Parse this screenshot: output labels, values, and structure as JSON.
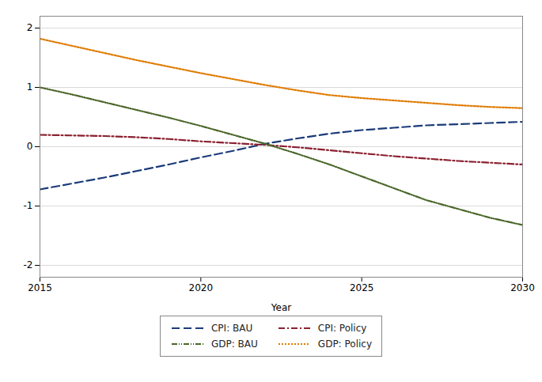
{
  "chart_data": {
    "type": "line",
    "xlabel": "Year",
    "x": [
      2015,
      2016,
      2017,
      2018,
      2019,
      2020,
      2021,
      2022,
      2023,
      2024,
      2025,
      2026,
      2027,
      2028,
      2029,
      2030
    ],
    "series": [
      {
        "name": "CPI: BAU",
        "color": "#1a3a7a",
        "line_style": "dashed",
        "values": [
          -0.72,
          -0.62,
          -0.52,
          -0.41,
          -0.3,
          -0.18,
          -0.07,
          0.05,
          0.14,
          0.22,
          0.28,
          0.32,
          0.36,
          0.38,
          0.4,
          0.42
        ]
      },
      {
        "name": "CPI: Policy",
        "color": "#8b2030",
        "line_style": "dashdot",
        "values": [
          0.2,
          0.19,
          0.18,
          0.16,
          0.13,
          0.09,
          0.06,
          0.03,
          -0.01,
          -0.06,
          -0.11,
          -0.16,
          -0.2,
          -0.24,
          -0.27,
          -0.3
        ]
      },
      {
        "name": "GDP: BAU",
        "color": "#4a6628",
        "line_style": "dashdotdot",
        "values": [
          1.0,
          0.88,
          0.75,
          0.62,
          0.49,
          0.35,
          0.2,
          0.05,
          -0.12,
          -0.3,
          -0.5,
          -0.7,
          -0.9,
          -1.05,
          -1.2,
          -1.32
        ]
      },
      {
        "name": "GDP: Policy",
        "color": "#e07b00",
        "line_style": "dotted",
        "values": [
          1.82,
          1.7,
          1.58,
          1.46,
          1.35,
          1.24,
          1.14,
          1.04,
          0.95,
          0.87,
          0.82,
          0.78,
          0.74,
          0.7,
          0.67,
          0.65
        ]
      }
    ],
    "xlim": [
      2015,
      2030
    ],
    "ylim": [
      -2.2,
      2.2
    ],
    "xticks": [
      2015,
      2020,
      2025,
      2030
    ],
    "yticks": [
      -2,
      -1,
      0,
      1,
      2
    ],
    "grid": true,
    "legend": "bottom"
  }
}
